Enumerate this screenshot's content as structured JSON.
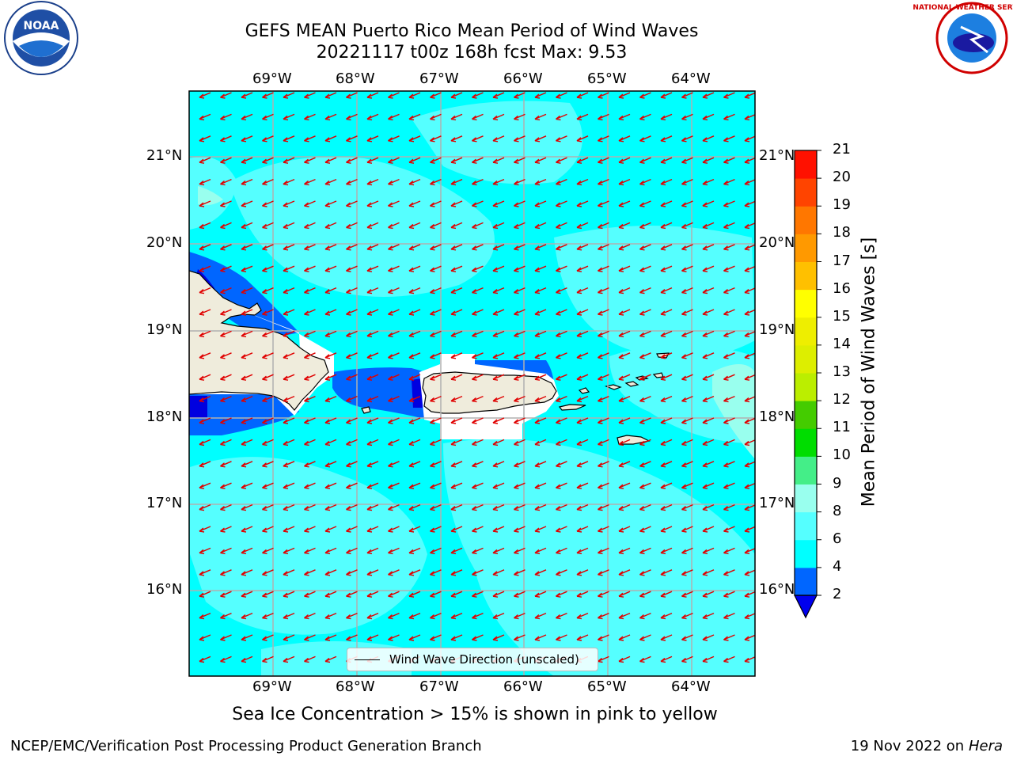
{
  "header": {
    "title_line1": "GEFS MEAN Puerto Rico Mean Period of Wind Waves",
    "title_line2": "20221117 t00z 168h fcst   Max: 9.53"
  },
  "logos": {
    "left": "NOAA",
    "right": "NATIONAL WEATHER SERVICE"
  },
  "map": {
    "lon_ticks": [
      "69°W",
      "68°W",
      "67°W",
      "66°W",
      "65°W",
      "64°W"
    ],
    "lat_ticks": [
      "21°N",
      "20°N",
      "19°N",
      "18°N",
      "17°N",
      "16°N"
    ],
    "legend_label": "Wind Wave Direction (unscaled)",
    "arrow_color": "#e00000",
    "land_color": "#efecdc",
    "ocean_colors": [
      "#00ffff",
      "#55ffff",
      "#0066ff",
      "#0000e0"
    ]
  },
  "colorbar": {
    "title": "Mean Period of Wind Waves [s]",
    "labels": [
      "2",
      "4",
      "6",
      "8",
      "9",
      "10",
      "11",
      "12",
      "13",
      "14",
      "15",
      "16",
      "17",
      "18",
      "19",
      "20",
      "21"
    ],
    "colors": [
      "#0066ff",
      "#00ffff",
      "#55ffff",
      "#99ffee",
      "#44ee88",
      "#00dd00",
      "#44cc00",
      "#bbee00",
      "#ddee00",
      "#eeee00",
      "#ffff00",
      "#ffc000",
      "#ff9900",
      "#ff7700",
      "#ff4400",
      "#ff1100"
    ],
    "under_color": "#0000ee"
  },
  "footer": {
    "caption": "Sea Ice Concentration > 15% is shown in pink to yellow",
    "left": "NCEP/EMC/Verification Post Processing Product Generation Branch",
    "right_date": "19 Nov 2022 on",
    "right_machine": "Hera"
  }
}
